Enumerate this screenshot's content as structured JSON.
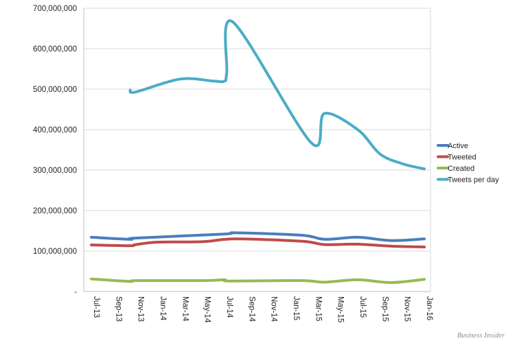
{
  "chart_data": {
    "type": "line",
    "title": "",
    "xlabel": "",
    "ylabel": "",
    "ylim": [
      0,
      700000000
    ],
    "y_ticks": [
      {
        "value": 0,
        "label": "-"
      },
      {
        "value": 100000000,
        "label": "100,000,000"
      },
      {
        "value": 200000000,
        "label": "200,000,000"
      },
      {
        "value": 300000000,
        "label": "300,000,000"
      },
      {
        "value": 400000000,
        "label": "400,000,000"
      },
      {
        "value": 500000000,
        "label": "500,000,000"
      },
      {
        "value": 600000000,
        "label": "600,000,000"
      },
      {
        "value": 700000000,
        "label": "700,000,000"
      }
    ],
    "x_ticks": [
      {
        "month": 0,
        "label": "Jul-13"
      },
      {
        "month": 2,
        "label": "Sep-13"
      },
      {
        "month": 4,
        "label": "Nov-13"
      },
      {
        "month": 6,
        "label": "Jan-14"
      },
      {
        "month": 8,
        "label": "Mar-14"
      },
      {
        "month": 10,
        "label": "May-14"
      },
      {
        "month": 12,
        "label": "Jul-14"
      },
      {
        "month": 14,
        "label": "Sep-14"
      },
      {
        "month": 16,
        "label": "Nov-14"
      },
      {
        "month": 18,
        "label": "Jan-15"
      },
      {
        "month": 20,
        "label": "Mar-15"
      },
      {
        "month": 22,
        "label": "May-15"
      },
      {
        "month": 24,
        "label": "Jul-15"
      },
      {
        "month": 26,
        "label": "Sep-15"
      },
      {
        "month": 28,
        "label": "Nov-15"
      },
      {
        "month": 30,
        "label": "Jan-16"
      }
    ],
    "x_range_months": [
      0,
      30
    ],
    "grid": true,
    "legend_position": "right",
    "series": [
      {
        "name": "Active",
        "color": "#4a7ebb",
        "points": [
          [
            0,
            134000000
          ],
          [
            3.5,
            129000000
          ],
          [
            4,
            132000000
          ],
          [
            12,
            142000000
          ],
          [
            13,
            145000000
          ],
          [
            19,
            139000000
          ],
          [
            21,
            129000000
          ],
          [
            24,
            134000000
          ],
          [
            27,
            126000000
          ],
          [
            30,
            130000000
          ]
        ]
      },
      {
        "name": "Tweeted",
        "color": "#be4b48",
        "points": [
          [
            0,
            115000000
          ],
          [
            3.5,
            113000000
          ],
          [
            4,
            116000000
          ],
          [
            6,
            122000000
          ],
          [
            10,
            123000000
          ],
          [
            13,
            130000000
          ],
          [
            19,
            124000000
          ],
          [
            21,
            116000000
          ],
          [
            24,
            117000000
          ],
          [
            27,
            112000000
          ],
          [
            30,
            110000000
          ]
        ]
      },
      {
        "name": "Created",
        "color": "#98b954",
        "points": [
          [
            0,
            31000000
          ],
          [
            3.5,
            25000000
          ],
          [
            4,
            27000000
          ],
          [
            10,
            27000000
          ],
          [
            12,
            29000000
          ],
          [
            12.5,
            26000000
          ],
          [
            19,
            27000000
          ],
          [
            21,
            23000000
          ],
          [
            24,
            29000000
          ],
          [
            27,
            22000000
          ],
          [
            30,
            30000000
          ]
        ]
      },
      {
        "name": "Tweets per day",
        "color": "#4bacc6",
        "points": [
          [
            3.5,
            498000000
          ],
          [
            4,
            493000000
          ],
          [
            8,
            525000000
          ],
          [
            11,
            520000000
          ],
          [
            12,
            520000000
          ],
          [
            12.2,
            540000000
          ],
          [
            12.8,
            665000000
          ],
          [
            19.8,
            368000000
          ],
          [
            21,
            440000000
          ],
          [
            24,
            400000000
          ],
          [
            26,
            340000000
          ],
          [
            28,
            316000000
          ],
          [
            30,
            303000000
          ]
        ]
      }
    ]
  },
  "source_credit": "Business Insider"
}
